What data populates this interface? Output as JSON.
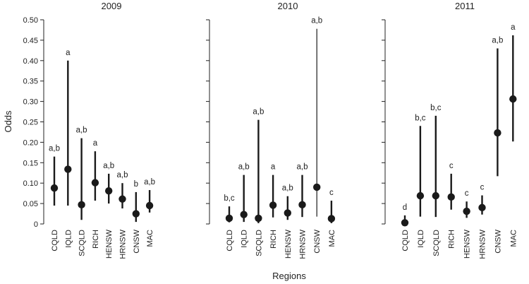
{
  "figure": {
    "ylabel": "Odds",
    "xlabel": "Regions",
    "ylim": [
      0,
      0.5
    ],
    "yticks": [
      "0",
      "0.05",
      "0.10",
      "0.15",
      "0.20",
      "0.25",
      "0.30",
      "0.35",
      "0.40",
      "0.45",
      "0.50"
    ],
    "colors": {
      "marker": "#1a1a1a",
      "axis": "#222222"
    }
  },
  "chart_data": [
    {
      "type": "scatter",
      "title": "2009",
      "categories": [
        "CQLD",
        "IQLD",
        "SCQLD",
        "RICH",
        "HENSW",
        "HRNSW",
        "CNSW",
        "MAC"
      ],
      "values": [
        0.088,
        0.134,
        0.047,
        0.101,
        0.081,
        0.061,
        0.025,
        0.045
      ],
      "lower": [
        0.045,
        0.045,
        0.01,
        0.057,
        0.05,
        0.038,
        0.005,
        0.028
      ],
      "upper": [
        0.165,
        0.4,
        0.21,
        0.178,
        0.123,
        0.1,
        0.078,
        0.083
      ],
      "labels": [
        "a,b",
        "a",
        "a,b",
        "a",
        "a,b",
        "a,b",
        "b",
        "a,b"
      ],
      "ylabel": "Odds",
      "xlabel": "Regions",
      "ylim": [
        0,
        0.5
      ]
    },
    {
      "type": "scatter",
      "title": "2010",
      "categories": [
        "CQLD",
        "IQLD",
        "SCQLD",
        "RICH",
        "HENSW",
        "HRNSW",
        "CNSW",
        "MAC"
      ],
      "values": [
        0.014,
        0.023,
        0.014,
        0.046,
        0.027,
        0.047,
        0.09,
        0.013
      ],
      "lower": [
        0.004,
        0.005,
        0.002,
        0.016,
        0.01,
        0.017,
        0.018,
        0.002
      ],
      "upper": [
        0.043,
        0.12,
        0.255,
        0.12,
        0.068,
        0.12,
        0.478,
        0.057
      ],
      "labels": [
        "b,c",
        "a,b",
        "a,b",
        "a",
        "a,b",
        "a,b",
        "a,b",
        "c"
      ],
      "ylabel": "Odds",
      "xlabel": "Regions",
      "ylim": [
        0,
        0.5
      ]
    },
    {
      "type": "scatter",
      "title": "2011",
      "categories": [
        "CQLD",
        "IQLD",
        "SCQLD",
        "RICH",
        "HENSW",
        "HRNSW",
        "CNSW",
        "MAC"
      ],
      "values": [
        0.003,
        0.069,
        0.069,
        0.066,
        0.031,
        0.04,
        0.223,
        0.306
      ],
      "lower": [
        0.0,
        0.018,
        0.017,
        0.035,
        0.015,
        0.023,
        0.117,
        0.202
      ],
      "upper": [
        0.021,
        0.24,
        0.265,
        0.123,
        0.055,
        0.07,
        0.43,
        0.462
      ],
      "labels": [
        "d",
        "b,c",
        "b,c",
        "c",
        "c",
        "c",
        "a,b",
        "a"
      ],
      "ylabel": "Odds",
      "xlabel": "Regions",
      "ylim": [
        0,
        0.5
      ]
    }
  ]
}
